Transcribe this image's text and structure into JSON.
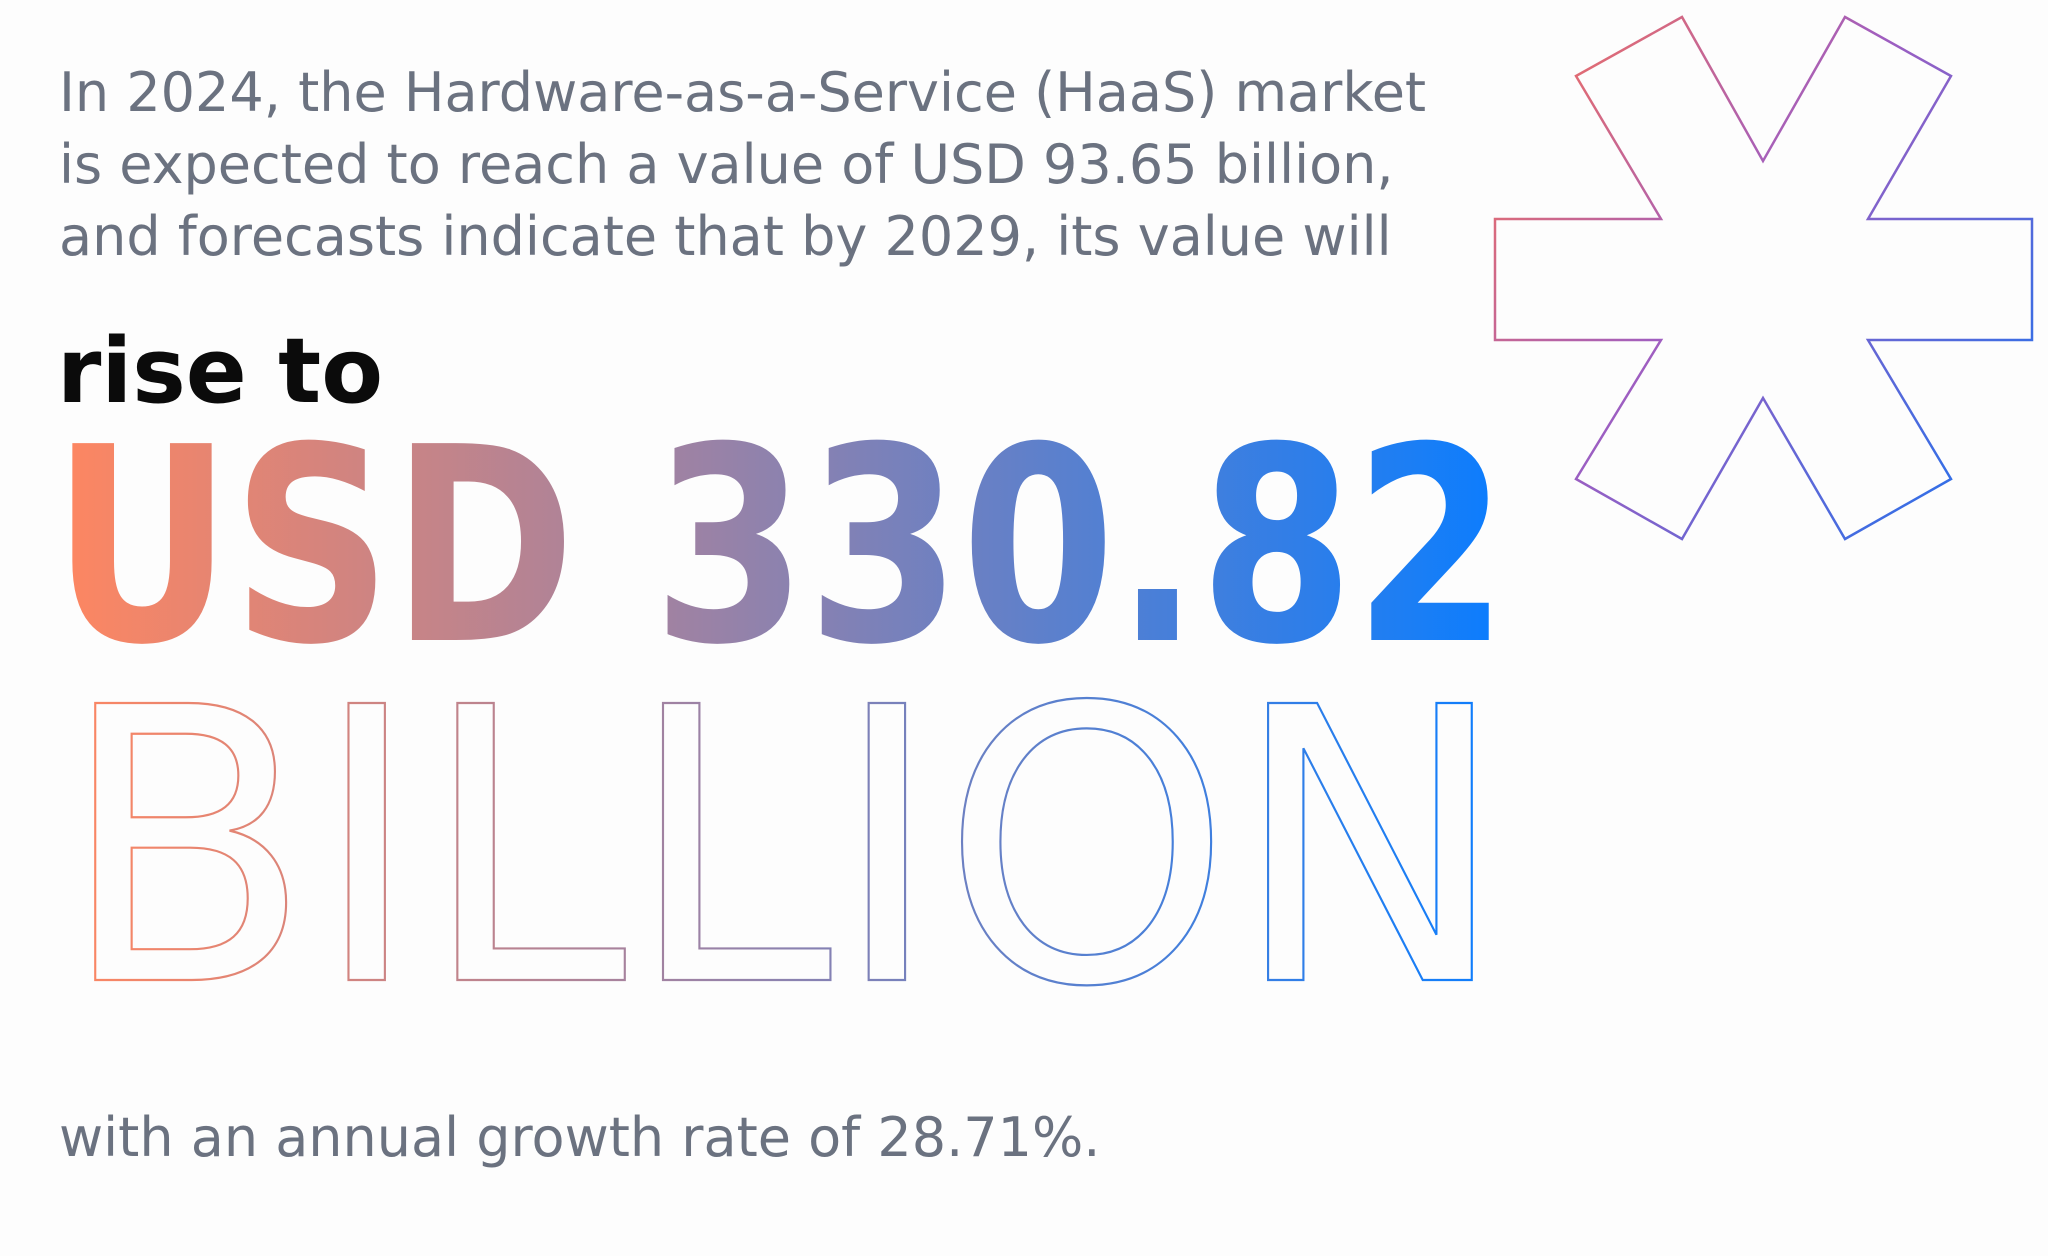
{
  "intro_lines": [
    "In 2024, the Hardware-as-a-Service (HaaS) market",
    "is expected to reach a value of USD 93.65 billion,",
    "and forecasts indicate that by 2029, its value will"
  ],
  "lead": "rise to",
  "headline": "USD 330.82",
  "headline_unit": "BILLION",
  "footer": "with an annual growth rate of 28.71%."
}
